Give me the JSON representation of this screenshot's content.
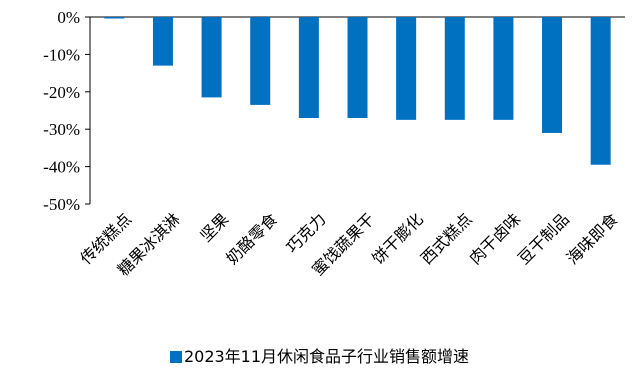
{
  "chart_data": {
    "type": "bar",
    "categories": [
      "传统糕点",
      "糖果冰淇淋",
      "坚果",
      "奶酪零食",
      "巧克力",
      "蜜饯蔬果干",
      "饼干膨化",
      "西式糕点",
      "肉干卤味",
      "豆干制品",
      "海味即食"
    ],
    "series": [
      {
        "name": "2023年11月休闲食品子行业销售额增速",
        "values": [
          -0.3,
          -13,
          -21.5,
          -23.5,
          -27,
          -27,
          -27.5,
          -27.5,
          -27.5,
          -31,
          -39.5
        ],
        "color": "#0070C0"
      }
    ],
    "yticks": [
      "0%",
      "-10%",
      "-20%",
      "-30%",
      "-40%",
      "-50%"
    ],
    "ylim": [
      -50,
      0
    ],
    "legend_position": "bottom",
    "grid": false
  }
}
